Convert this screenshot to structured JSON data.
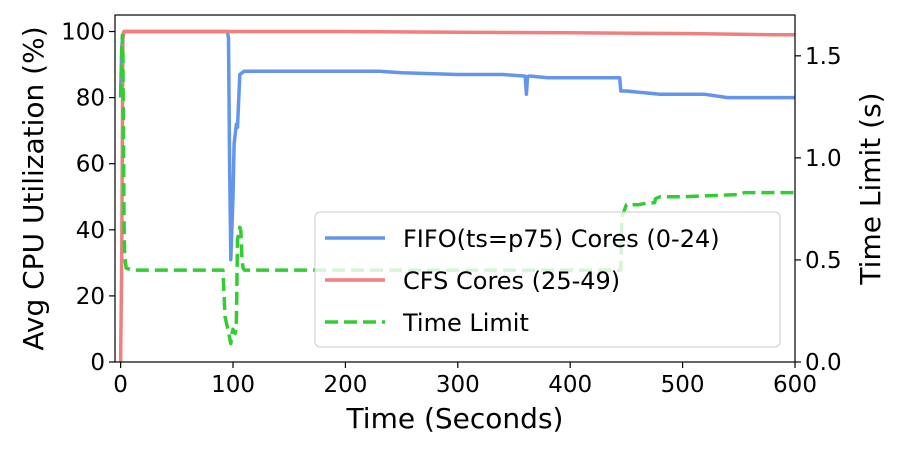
{
  "chart_data": {
    "type": "line",
    "title": "",
    "xlabel": "Time (Seconds)",
    "ylabel": "Avg CPU Utilization (%)",
    "y2label": "Time Limit (s)",
    "xlim": [
      -5,
      600
    ],
    "ylim": [
      0,
      105
    ],
    "y2lim": [
      0,
      1.7
    ],
    "xticks": [
      0,
      100,
      200,
      300,
      400,
      500,
      600
    ],
    "yticks": [
      0,
      20,
      40,
      60,
      80,
      100
    ],
    "y2ticks": [
      0.0,
      0.5,
      1.0,
      1.5
    ],
    "y2ticklabels": [
      "0.0",
      "0.5",
      "1.0",
      "1.5"
    ],
    "grid": false,
    "legend_position": "lower-right",
    "series": [
      {
        "name": "FIFO(ts=p75) Cores (0-24)",
        "axis": "left",
        "color": "#6495ED",
        "style": "solid",
        "x": [
          0,
          1,
          2,
          3,
          5,
          10,
          50,
          90,
          95,
          96,
          97,
          98,
          100,
          101,
          103,
          104,
          106,
          110,
          150,
          200,
          230,
          250,
          300,
          340,
          360,
          361,
          362,
          363,
          365,
          380,
          400,
          420,
          440,
          444,
          445,
          446,
          450,
          480,
          500,
          520,
          540,
          560,
          580,
          600
        ],
        "y": [
          80,
          95,
          99,
          100,
          100,
          100,
          100,
          100,
          100,
          98,
          60,
          31,
          50,
          66,
          72,
          71,
          87,
          88,
          88,
          88,
          88,
          87.5,
          87,
          87,
          86.5,
          81,
          86,
          86.5,
          86.5,
          86,
          86,
          86,
          86,
          86,
          82,
          82,
          82,
          81,
          81,
          81,
          80,
          80,
          80,
          80
        ]
      },
      {
        "name": "CFS Cores (25-49)",
        "axis": "left",
        "color": "#F08080",
        "style": "solid",
        "x": [
          0,
          1,
          2,
          3,
          10,
          50,
          100,
          200,
          300,
          400,
          500,
          550,
          580,
          590,
          600
        ],
        "y": [
          0,
          30,
          98,
          100,
          100,
          100,
          100,
          100,
          99.8,
          99.6,
          99.4,
          99.2,
          99,
          99,
          99
        ]
      },
      {
        "name": "Time Limit",
        "axis": "right",
        "color": "#32CD32",
        "style": "dashed",
        "x": [
          0,
          1,
          1.5,
          2,
          3,
          3.5,
          5,
          10,
          50,
          80,
          90,
          91,
          93,
          95,
          97,
          98,
          99,
          100,
          102,
          103,
          104,
          106,
          107,
          108,
          109,
          110,
          150,
          200,
          250,
          300,
          350,
          400,
          420,
          440,
          445,
          446,
          450,
          460,
          470,
          475,
          476,
          480,
          500,
          550,
          555,
          560,
          580,
          600
        ],
        "y": [
          1.3,
          1.5,
          1.6,
          1.5,
          0.7,
          0.52,
          0.46,
          0.45,
          0.45,
          0.45,
          0.45,
          0.45,
          0.22,
          0.17,
          0.12,
          0.09,
          0.14,
          0.16,
          0.14,
          0.2,
          0.6,
          0.66,
          0.64,
          0.5,
          0.46,
          0.45,
          0.45,
          0.45,
          0.45,
          0.45,
          0.45,
          0.45,
          0.45,
          0.45,
          0.45,
          0.71,
          0.77,
          0.77,
          0.78,
          0.78,
          0.8,
          0.81,
          0.81,
          0.82,
          0.83,
          0.83,
          0.83,
          0.83
        ]
      }
    ]
  }
}
